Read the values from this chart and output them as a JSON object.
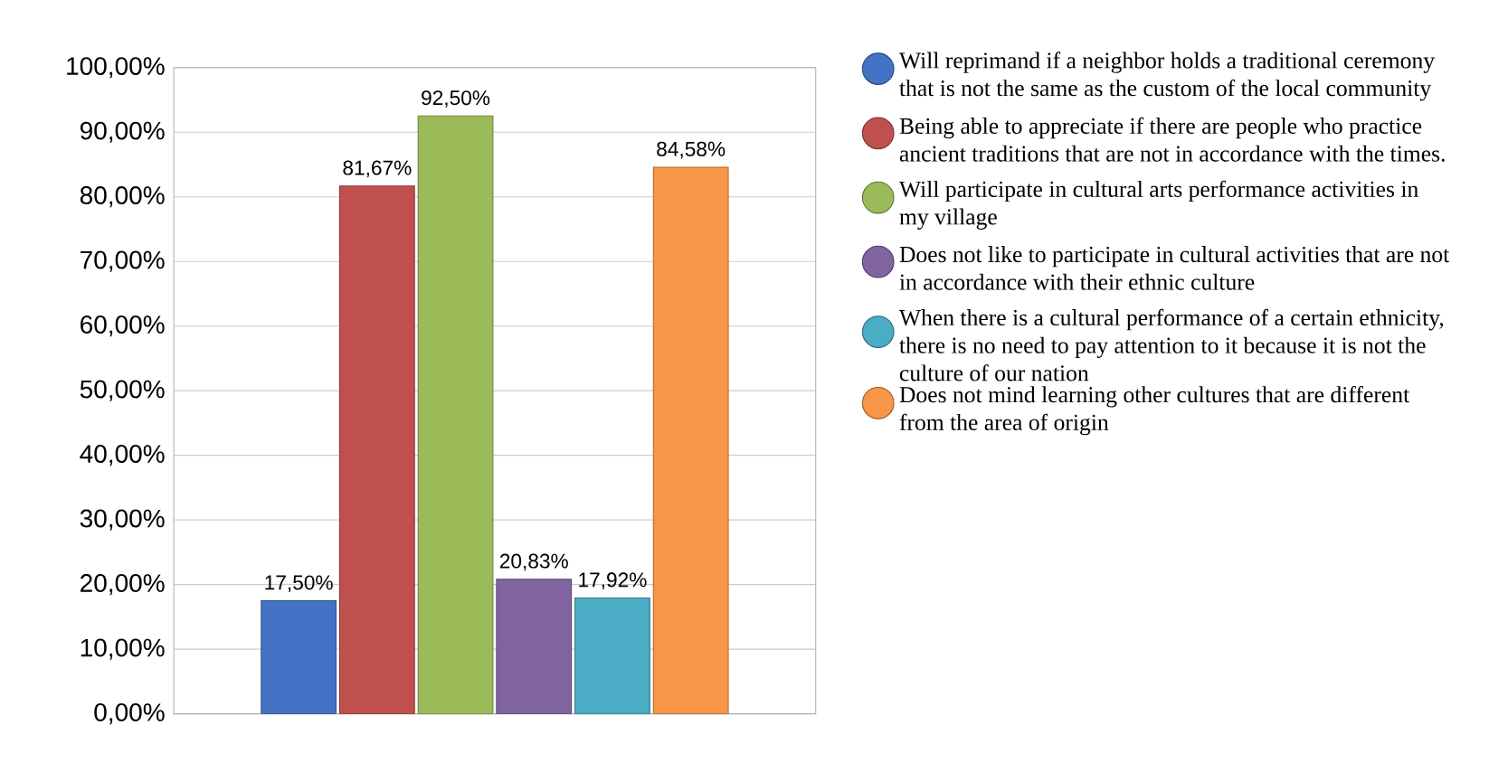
{
  "chart_data": {
    "type": "bar",
    "categories": [
      null
    ],
    "series": [
      {
        "name": "Will reprimand if a neighbor holds a traditional ceremony that is not the same as the custom of the local community",
        "color": "#4472c4",
        "values": [
          17.5
        ],
        "value_labels": [
          "17,50%"
        ]
      },
      {
        "name": "Being able to appreciate if there are people who practice ancient traditions that are not in accordance with the times.",
        "color": "#c0504d",
        "values": [
          81.67
        ],
        "value_labels": [
          "81,67%"
        ]
      },
      {
        "name": "Will participate in cultural arts performance activities in my village",
        "color": "#9bbb59",
        "values": [
          92.5
        ],
        "value_labels": [
          "92,50%"
        ]
      },
      {
        "name": "Does not like to participate in cultural activities that are not in accordance with their ethnic culture",
        "color": "#8064a2",
        "values": [
          20.83
        ],
        "value_labels": [
          "20,83%"
        ]
      },
      {
        "name": "When there is a cultural performance of a certain ethnicity, there is no need to pay attention to it because it is not the culture of our nation",
        "color": "#4bacc6",
        "values": [
          17.92
        ],
        "value_labels": [
          "17,92%"
        ]
      },
      {
        "name": "Does not mind learning other cultures that are different from the area of origin",
        "color": "#f79646",
        "values": [
          84.58
        ],
        "value_labels": [
          "84,58%"
        ]
      }
    ],
    "ylim": [
      0,
      100
    ],
    "yticks": [
      {
        "value": 0,
        "label": "0,00%"
      },
      {
        "value": 10,
        "label": "10,00%"
      },
      {
        "value": 20,
        "label": "20,00%"
      },
      {
        "value": 30,
        "label": "30,00%"
      },
      {
        "value": 40,
        "label": "40,00%"
      },
      {
        "value": 50,
        "label": "50,00%"
      },
      {
        "value": 60,
        "label": "60,00%"
      },
      {
        "value": 70,
        "label": "70,00%"
      },
      {
        "value": 80,
        "label": "80,00%"
      },
      {
        "value": 90,
        "label": "90,00%"
      },
      {
        "value": 100,
        "label": "100,00%"
      }
    ],
    "grid": "y",
    "legend": "right"
  }
}
